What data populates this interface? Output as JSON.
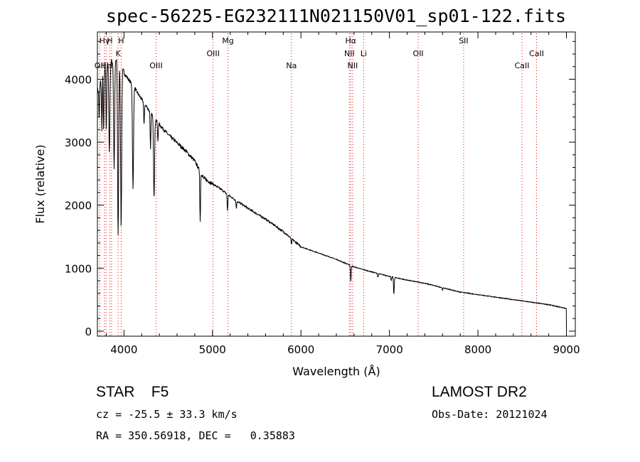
{
  "title": "spec-56225-EG232111N021150V01_sp01-122.fits",
  "info": {
    "object_class": "STAR",
    "subclass": "F5",
    "survey": "LAMOST DR2",
    "cz": "cz = -25.5 ± 33.3 km/s",
    "obs_date": "Obs-Date: 20121024",
    "ra_dec": "RA = 350.56918, DEC =   0.35883"
  },
  "chart_data": {
    "type": "line",
    "title": "spec-56225-EG232111N021150V01_sp01-122.fits",
    "xlabel": "Wavelength (Å)",
    "ylabel": "Flux (relative)",
    "xlim": [
      3700,
      9100
    ],
    "ylim": [
      -80,
      4750
    ],
    "x_ticks": [
      4000,
      5000,
      6000,
      7000,
      8000,
      9000
    ],
    "y_ticks": [
      0,
      1000,
      2000,
      3000,
      4000
    ],
    "line_color": "#000000",
    "marker_color": "#ff0000",
    "grid": false,
    "continuum": [
      [
        3700,
        3800
      ],
      [
        3800,
        4200
      ],
      [
        3900,
        4320
      ],
      [
        4000,
        4100
      ],
      [
        4100,
        3900
      ],
      [
        4200,
        3680
      ],
      [
        4300,
        3470
      ],
      [
        4400,
        3280
      ],
      [
        4500,
        3120
      ],
      [
        4600,
        2990
      ],
      [
        4700,
        2860
      ],
      [
        4800,
        2700
      ],
      [
        4900,
        2430
      ],
      [
        5000,
        2340
      ],
      [
        5100,
        2250
      ],
      [
        5200,
        2140
      ],
      [
        5400,
        1950
      ],
      [
        5600,
        1780
      ],
      [
        5800,
        1580
      ],
      [
        6000,
        1340
      ],
      [
        6200,
        1240
      ],
      [
        6400,
        1140
      ],
      [
        6600,
        1020
      ],
      [
        6800,
        940
      ],
      [
        7000,
        870
      ],
      [
        7200,
        810
      ],
      [
        7400,
        760
      ],
      [
        7600,
        690
      ],
      [
        7800,
        620
      ],
      [
        8000,
        580
      ],
      [
        8200,
        540
      ],
      [
        8400,
        500
      ],
      [
        8600,
        460
      ],
      [
        8800,
        420
      ],
      [
        9000,
        360
      ]
    ],
    "absorption_lines": [
      {
        "x": 3720,
        "depth": 500
      },
      {
        "x": 3750,
        "depth": 800
      },
      {
        "x": 3770,
        "depth": 900
      },
      {
        "x": 3800,
        "depth": 1000
      },
      {
        "x": 3835,
        "depth": 1400
      },
      {
        "x": 3889,
        "depth": 1700
      },
      {
        "x": 3934,
        "depth": 2700
      },
      {
        "x": 3968,
        "depth": 2500
      },
      {
        "x": 4102,
        "depth": 1650
      },
      {
        "x": 4227,
        "depth": 350
      },
      {
        "x": 4300,
        "depth": 600
      },
      {
        "x": 4340,
        "depth": 1250
      },
      {
        "x": 4383,
        "depth": 300
      },
      {
        "x": 4861,
        "depth": 800
      },
      {
        "x": 5170,
        "depth": 260
      },
      {
        "x": 5270,
        "depth": 120
      },
      {
        "x": 5892,
        "depth": 100
      },
      {
        "x": 6563,
        "depth": 260
      },
      {
        "x": 6870,
        "depth": 60
      },
      {
        "x": 7020,
        "depth": 60
      },
      {
        "x": 7050,
        "depth": 270
      },
      {
        "x": 7600,
        "depth": 40
      }
    ],
    "line_markers": [
      {
        "label": "OII",
        "x": 3727,
        "row": 3
      },
      {
        "label": "Hγ",
        "x": 3780,
        "row": 1
      },
      {
        "label": "He",
        "x": 3797,
        "row": 3
      },
      {
        "label": "H",
        "x": 3840,
        "row": 1
      },
      {
        "label": "I",
        "x": 3860,
        "row": 3
      },
      {
        "label": "K",
        "x": 3934,
        "row": 2
      },
      {
        "label": "H",
        "x": 3968,
        "row": 1
      },
      {
        "label": "OIII",
        "x": 4363,
        "row": 3
      },
      {
        "label": "OIII",
        "x": 5007,
        "row": 2
      },
      {
        "label": "Mg",
        "x": 5175,
        "row": 1
      },
      {
        "label": "Na",
        "x": 5893,
        "row": 3
      },
      {
        "label": "Hα",
        "x": 6563,
        "row": 1
      },
      {
        "label": "NII",
        "x": 6548,
        "row": 2
      },
      {
        "label": "Li",
        "x": 6708,
        "row": 2
      },
      {
        "label": "NII",
        "x": 6584,
        "row": 3
      },
      {
        "label": "OII",
        "x": 7325,
        "row": 2
      },
      {
        "label": "SII",
        "x": 7838,
        "row": 1
      },
      {
        "label": "CaII",
        "x": 8498,
        "row": 3
      },
      {
        "label": "CaII",
        "x": 8662,
        "row": 2
      }
    ]
  }
}
